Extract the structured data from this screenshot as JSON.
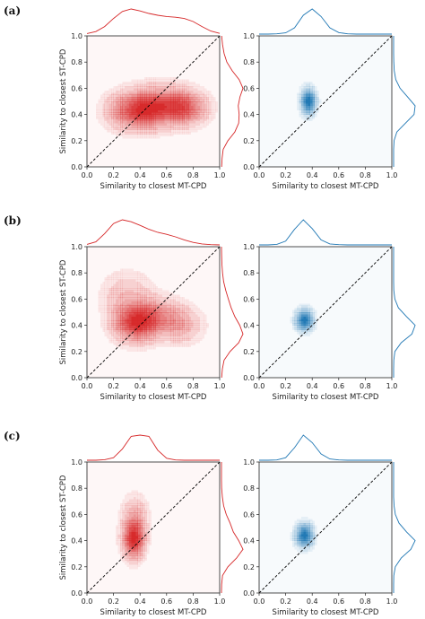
{
  "chart_data": [
    {
      "panel": "(a)",
      "type": "contour",
      "xlabel": "Similarity to closest MT-CPD",
      "ylabel": "Similarity to closest ST-CPD",
      "xlim": [
        0.0,
        1.0
      ],
      "ylim": [
        0.0,
        1.0
      ],
      "xticks": [
        "0.0",
        "0.2",
        "0.4",
        "0.6",
        "0.8",
        "1.0"
      ],
      "yticks": [
        "0.0",
        "0.2",
        "0.4",
        "0.6",
        "0.8",
        "1.0"
      ],
      "diagonal": "y = x dashed",
      "plots": [
        {
          "color": "#d62728",
          "blobs": [
            {
              "x": 0.38,
              "y": 0.43,
              "sx": 0.13,
              "sy": 0.09,
              "w": 1.0
            },
            {
              "x": 0.58,
              "y": 0.47,
              "sx": 0.13,
              "sy": 0.09,
              "w": 0.75
            },
            {
              "x": 0.75,
              "y": 0.45,
              "sx": 0.1,
              "sy": 0.08,
              "w": 0.65
            }
          ],
          "marginal_x": [
            0.02,
            0.1,
            0.3,
            0.62,
            0.9,
            1.0,
            0.92,
            0.82,
            0.75,
            0.7,
            0.67,
            0.62,
            0.5,
            0.3,
            0.12,
            0.03
          ],
          "marginal_y": [
            0.01,
            0.03,
            0.08,
            0.3,
            0.62,
            0.8,
            0.82,
            0.78,
            0.86,
            1.0,
            0.82,
            0.5,
            0.25,
            0.12,
            0.05,
            0.01
          ]
        },
        {
          "color": "#1f77b4",
          "blobs": [
            {
              "x": 0.37,
              "y": 0.5,
              "sx": 0.035,
              "sy": 0.06,
              "w": 1.0
            }
          ],
          "marginal_x": [
            0.0,
            0.0,
            0.01,
            0.05,
            0.25,
            0.75,
            1.0,
            0.7,
            0.25,
            0.06,
            0.01,
            0.0,
            0.0,
            0.0,
            0.0,
            0.0
          ],
          "marginal_y": [
            0.0,
            0.0,
            0.0,
            0.02,
            0.15,
            0.55,
            0.95,
            1.0,
            0.65,
            0.3,
            0.1,
            0.03,
            0.01,
            0.0,
            0.0,
            0.0
          ]
        }
      ]
    },
    {
      "panel": "(b)",
      "type": "contour",
      "xlabel": "Similarity to closest MT-CPD",
      "ylabel": "Similarity to closest ST-CPD",
      "xlim": [
        0.0,
        1.0
      ],
      "ylim": [
        0.0,
        1.0
      ],
      "xticks": [
        "0.0",
        "0.2",
        "0.4",
        "0.6",
        "0.8",
        "1.0"
      ],
      "yticks": [
        "0.0",
        "0.2",
        "0.4",
        "0.6",
        "0.8",
        "1.0"
      ],
      "diagonal": "y = x dashed",
      "plots": [
        {
          "color": "#d62728",
          "blobs": [
            {
              "x": 0.36,
              "y": 0.42,
              "sx": 0.1,
              "sy": 0.09,
              "w": 1.0
            },
            {
              "x": 0.52,
              "y": 0.46,
              "sx": 0.12,
              "sy": 0.09,
              "w": 0.6
            },
            {
              "x": 0.3,
              "y": 0.62,
              "sx": 0.12,
              "sy": 0.12,
              "w": 0.25
            },
            {
              "x": 0.72,
              "y": 0.4,
              "sx": 0.1,
              "sy": 0.09,
              "w": 0.3
            }
          ],
          "marginal_x": [
            0.02,
            0.12,
            0.45,
            0.85,
            1.0,
            0.92,
            0.78,
            0.62,
            0.5,
            0.42,
            0.32,
            0.2,
            0.1,
            0.04,
            0.01,
            0.0
          ],
          "marginal_y": [
            0.01,
            0.04,
            0.12,
            0.4,
            0.8,
            1.0,
            0.85,
            0.62,
            0.45,
            0.32,
            0.2,
            0.1,
            0.05,
            0.02,
            0.01,
            0.0
          ]
        },
        {
          "color": "#1f77b4",
          "blobs": [
            {
              "x": 0.34,
              "y": 0.44,
              "sx": 0.04,
              "sy": 0.05,
              "w": 1.0
            }
          ],
          "marginal_x": [
            0.0,
            0.0,
            0.02,
            0.15,
            0.62,
            1.0,
            0.65,
            0.2,
            0.04,
            0.01,
            0.0,
            0.0,
            0.0,
            0.0,
            0.0,
            0.0
          ],
          "marginal_y": [
            0.0,
            0.0,
            0.01,
            0.06,
            0.35,
            0.85,
            1.0,
            0.6,
            0.22,
            0.06,
            0.01,
            0.0,
            0.0,
            0.0,
            0.0,
            0.0
          ]
        }
      ]
    },
    {
      "panel": "(c)",
      "type": "contour",
      "xlabel": "Similarity to closest MT-CPD",
      "ylabel": "Similarity to closest ST-CPD",
      "xlim": [
        0.0,
        1.0
      ],
      "ylim": [
        0.0,
        1.0
      ],
      "xticks": [
        "0.0",
        "0.2",
        "0.4",
        "0.6",
        "0.8",
        "1.0"
      ],
      "yticks": [
        "0.0",
        "0.2",
        "0.4",
        "0.6",
        "0.8",
        "1.0"
      ],
      "diagonal": "y = x dashed",
      "plots": [
        {
          "color": "#d62728",
          "blobs": [
            {
              "x": 0.35,
              "y": 0.41,
              "sx": 0.05,
              "sy": 0.09,
              "w": 1.0
            },
            {
              "x": 0.36,
              "y": 0.58,
              "sx": 0.06,
              "sy": 0.1,
              "w": 0.3
            }
          ],
          "marginal_x": [
            0.0,
            0.0,
            0.02,
            0.1,
            0.45,
            0.95,
            1.0,
            0.95,
            0.4,
            0.08,
            0.01,
            0.0,
            0.0,
            0.0,
            0.0,
            0.0
          ],
          "marginal_y": [
            0.0,
            0.01,
            0.05,
            0.3,
            0.7,
            1.0,
            0.8,
            0.55,
            0.4,
            0.22,
            0.1,
            0.04,
            0.01,
            0.0,
            0.0,
            0.0
          ]
        },
        {
          "color": "#1f77b4",
          "blobs": [
            {
              "x": 0.34,
              "y": 0.44,
              "sx": 0.04,
              "sy": 0.055,
              "w": 1.0
            }
          ],
          "marginal_x": [
            0.0,
            0.0,
            0.01,
            0.1,
            0.5,
            1.0,
            0.7,
            0.25,
            0.05,
            0.01,
            0.0,
            0.0,
            0.0,
            0.0,
            0.0,
            0.0
          ],
          "marginal_y": [
            0.0,
            0.0,
            0.01,
            0.08,
            0.35,
            0.8,
            1.0,
            0.6,
            0.25,
            0.08,
            0.02,
            0.0,
            0.0,
            0.0,
            0.0,
            0.0
          ]
        }
      ]
    }
  ]
}
